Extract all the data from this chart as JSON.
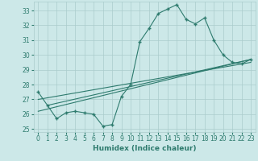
{
  "xlabel": "Humidex (Indice chaleur)",
  "bg_color": "#cce8e8",
  "grid_color": "#aacccc",
  "line_color": "#2e7b6e",
  "xlim": [
    -0.5,
    23.5
  ],
  "ylim": [
    24.8,
    33.6
  ],
  "xticks": [
    0,
    1,
    2,
    3,
    4,
    5,
    6,
    7,
    8,
    9,
    10,
    11,
    12,
    13,
    14,
    15,
    16,
    17,
    18,
    19,
    20,
    21,
    22,
    23
  ],
  "yticks": [
    25,
    26,
    27,
    28,
    29,
    30,
    31,
    32,
    33
  ],
  "series1_x": [
    0,
    1,
    2,
    3,
    4,
    5,
    6,
    7,
    8,
    9,
    10,
    11,
    12,
    13,
    14,
    15,
    16,
    17,
    18,
    19,
    20,
    21,
    22,
    23
  ],
  "series1_y": [
    27.5,
    26.6,
    25.7,
    26.1,
    26.2,
    26.1,
    26.0,
    25.2,
    25.3,
    27.2,
    28.0,
    30.9,
    31.8,
    32.8,
    33.1,
    33.4,
    32.4,
    32.1,
    32.5,
    31.0,
    30.0,
    29.5,
    29.4,
    29.7
  ],
  "line2_x": [
    1,
    23
  ],
  "line2_y": [
    26.6,
    29.7
  ],
  "line3_x": [
    0,
    23
  ],
  "line3_y": [
    26.2,
    29.7
  ],
  "line4_x": [
    0,
    23
  ],
  "line4_y": [
    27.0,
    29.5
  ]
}
